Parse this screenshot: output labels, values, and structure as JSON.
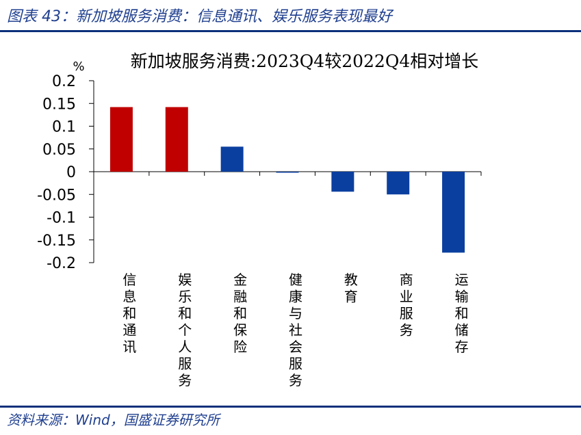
{
  "figure": {
    "title": "图表 43：新加坡服务消费：信息通讯、娱乐服务表现最好",
    "source": "资料来源：Wind，国盛证券研究所"
  },
  "colors": {
    "positive_bar": "#c00000",
    "negative_bar": "#0b3f9f",
    "header_rule": "#0b2f7a",
    "header_text": "#1f3f8f"
  },
  "chart_data": {
    "type": "bar",
    "title": "新加坡服务消费:2023Q4较2022Q4相对增长",
    "ylabel": "%",
    "ylim": [
      -0.2,
      0.2
    ],
    "yticks": [
      0.2,
      0.15,
      0.1,
      0.05,
      0,
      -0.05,
      -0.1,
      -0.15,
      -0.2
    ],
    "ytick_labels": [
      "0.2",
      "0.15",
      "0.1",
      "0.05",
      "0",
      "-0.05",
      "-0.1",
      "-0.15",
      "-0.2"
    ],
    "categories": [
      "信息和通讯",
      "娱乐和个人服务",
      "金融和保险",
      "健康与社会服务",
      "教育",
      "商业服务",
      "运输和储存"
    ],
    "values": [
      0.142,
      0.142,
      0.055,
      -0.002,
      -0.044,
      -0.05,
      -0.178
    ],
    "bar_colors": [
      "#c00000",
      "#c00000",
      "#0b3f9f",
      "#0b3f9f",
      "#0b3f9f",
      "#0b3f9f",
      "#0b3f9f"
    ],
    "grid": false,
    "legend": "none"
  }
}
